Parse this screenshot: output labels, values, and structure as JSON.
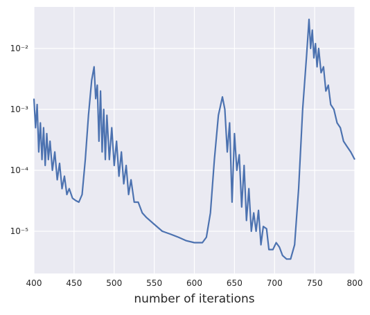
{
  "chart_data": {
    "type": "line",
    "xlabel": "number of iterations",
    "x": [
      400,
      402,
      404,
      406,
      408,
      410,
      412,
      414,
      416,
      418,
      420,
      423,
      426,
      429,
      432,
      435,
      438,
      441,
      444,
      448,
      452,
      456,
      460,
      464,
      468,
      472,
      475,
      477,
      479,
      481,
      483,
      485,
      487,
      489,
      491,
      494,
      497,
      500,
      503,
      506,
      509,
      512,
      515,
      518,
      521,
      525,
      530,
      535,
      540,
      550,
      560,
      570,
      580,
      590,
      600,
      610,
      615,
      620,
      625,
      630,
      635,
      638,
      641,
      644,
      647,
      650,
      653,
      656,
      659,
      662,
      665,
      668,
      671,
      674,
      677,
      680,
      683,
      686,
      690,
      693,
      698,
      702,
      706,
      710,
      715,
      720,
      725,
      730,
      735,
      740,
      743,
      745,
      747,
      749,
      751,
      753,
      755,
      758,
      761,
      764,
      767,
      770,
      774,
      778,
      782,
      786,
      790,
      795,
      800
    ],
    "series": [
      {
        "color": "#4c72b0",
        "values": [
          0.0015,
          0.0005,
          0.0012,
          0.0002,
          0.0006,
          0.00015,
          0.0005,
          0.00012,
          0.0004,
          0.00015,
          0.0003,
          0.0001,
          0.0002,
          7e-05,
          0.00013,
          5e-05,
          8e-05,
          4e-05,
          5e-05,
          3.5e-05,
          3.2e-05,
          3e-05,
          4e-05,
          0.00015,
          0.0008,
          0.003,
          0.005,
          0.0015,
          0.0025,
          0.0003,
          0.002,
          0.0002,
          0.001,
          0.00015,
          0.0008,
          0.00015,
          0.0005,
          0.00012,
          0.0003,
          8e-05,
          0.0002,
          6e-05,
          0.00012,
          4e-05,
          7e-05,
          3e-05,
          3e-05,
          2e-05,
          1.7e-05,
          1.3e-05,
          1e-05,
          9e-06,
          8e-06,
          7e-06,
          6.5e-06,
          6.5e-06,
          8e-06,
          2e-05,
          0.00015,
          0.0008,
          0.0016,
          0.001,
          0.0002,
          0.0006,
          3e-05,
          0.0004,
          0.0001,
          0.00018,
          2.5e-05,
          0.00012,
          1.5e-05,
          5e-05,
          1e-05,
          2e-05,
          1e-05,
          2.2e-05,
          6e-06,
          1.2e-05,
          1.1e-05,
          5e-06,
          5e-06,
          6.5e-06,
          5.5e-06,
          4e-06,
          3.5e-06,
          3.5e-06,
          6e-06,
          5e-05,
          0.001,
          0.008,
          0.03,
          0.01,
          0.02,
          0.007,
          0.012,
          0.005,
          0.01,
          0.004,
          0.005,
          0.002,
          0.0025,
          0.0012,
          0.001,
          0.0006,
          0.0005,
          0.0003,
          0.00025,
          0.0002,
          0.00015
        ]
      }
    ],
    "xlim": [
      400,
      800
    ],
    "xticks": [
      400,
      450,
      500,
      550,
      600,
      650,
      700,
      750,
      800
    ],
    "ylim": [
      2.03e-06,
      0.048
    ],
    "log_y": true,
    "yticks": [
      {
        "value": 1e-05,
        "label": "10⁻⁵"
      },
      {
        "value": 0.0001,
        "label": "10⁻⁴"
      },
      {
        "value": 0.001,
        "label": "10⁻³"
      },
      {
        "value": 0.01,
        "label": "10⁻²"
      }
    ],
    "grid": true
  }
}
